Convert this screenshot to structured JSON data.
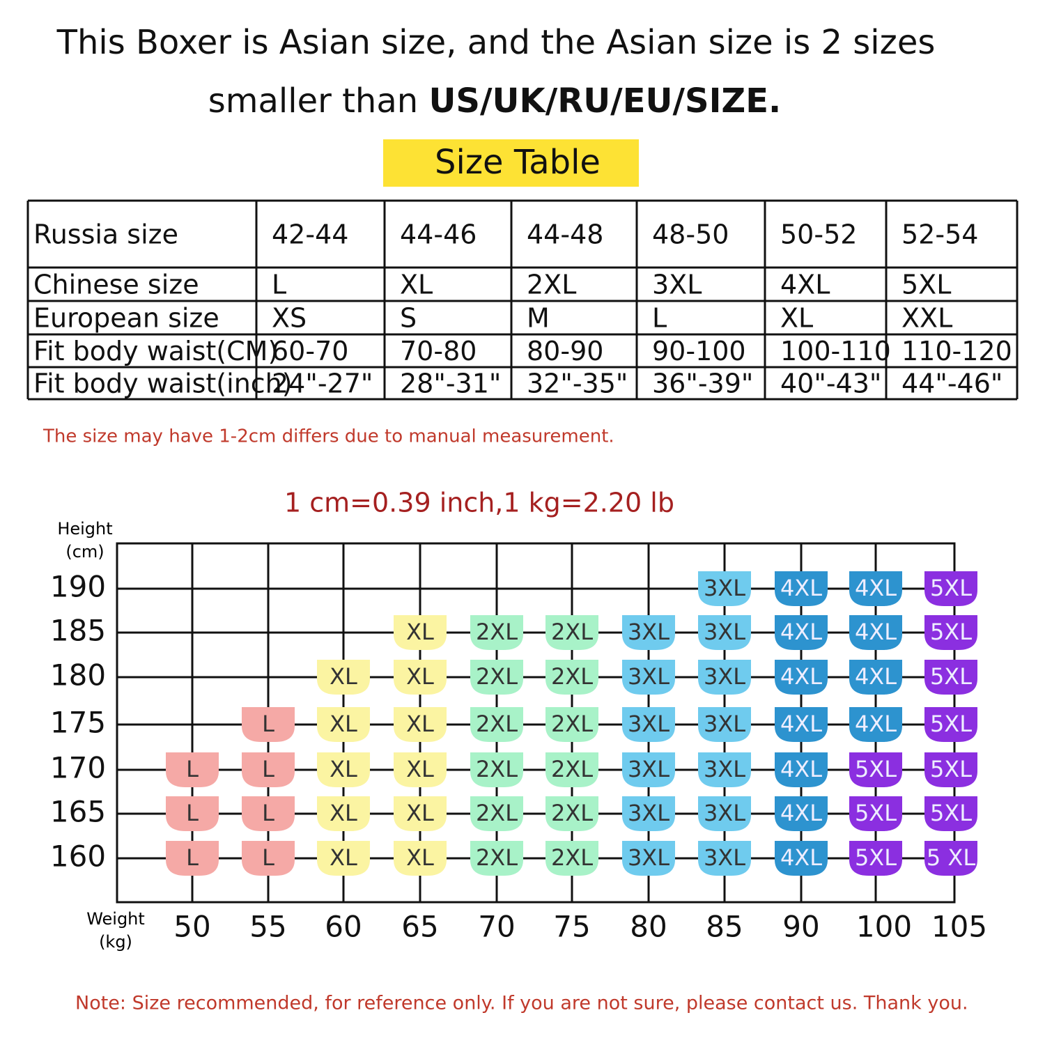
{
  "header": {
    "line1": "This Boxer is Asian size, and the Asian size is 2 sizes",
    "line2_plain": "smaller than ",
    "line2_bold": "US/UK/RU/EU/SIZE.",
    "badge": "Size Table"
  },
  "table": {
    "rows": [
      [
        "Russia size",
        "42-44",
        "44-46",
        "44-48",
        "48-50",
        "50-52",
        "52-54"
      ],
      [
        "Chinese size",
        "L",
        "XL",
        "2XL",
        "3XL",
        "4XL",
        "5XL"
      ],
      [
        "European size",
        "XS",
        "S",
        "M",
        "L",
        "XL",
        "XXL"
      ],
      [
        "Fit body waist(CM)",
        "60-70",
        "70-80",
        "80-90",
        "90-100",
        "100-110",
        "110-120"
      ],
      [
        "Fit body waist(inch)",
        "24\"-27\"",
        "28\"-31\"",
        "32\"-35\"",
        "36\"-39\"",
        "40\"-43\"",
        "44\"-46\""
      ]
    ]
  },
  "measure_note": "The size may have 1-2cm differs due to manual measurement.",
  "conversion": "1 cm=0.39 inch,1 kg=2.20 lb",
  "size_chart": {
    "y_label": [
      "Height",
      "(cm)"
    ],
    "x_label": [
      "Weight",
      "(kg)"
    ],
    "heights": [
      "190",
      "185",
      "180",
      "175",
      "170",
      "165",
      "160"
    ],
    "weights": [
      "50",
      "55",
      "60",
      "65",
      "70",
      "75",
      "80",
      "85",
      "90",
      "100",
      "105"
    ],
    "size_colors": {
      "L": "#f5a9a6",
      "XL": "#fbf4a2",
      "2XL": "#a8f2c8",
      "3XL": "#6fcbee",
      "4XL": "#2d93cf",
      "5XL": "#8b2fe0"
    },
    "cells": [
      [
        null,
        null,
        null,
        null,
        null,
        null,
        null,
        "3XL",
        "4XL",
        "4XL",
        "5XL"
      ],
      [
        null,
        null,
        null,
        "XL",
        "2XL",
        "2XL",
        "3XL",
        "3XL",
        "4XL",
        "4XL",
        "5XL"
      ],
      [
        null,
        null,
        "XL",
        "XL",
        "2XL",
        "2XL",
        "3XL",
        "3XL",
        "4XL",
        "4XL",
        "5XL"
      ],
      [
        null,
        "L",
        "XL",
        "XL",
        "2XL",
        "2XL",
        "3XL",
        "3XL",
        "4XL",
        "4XL",
        "5XL"
      ],
      [
        "L",
        "L",
        "XL",
        "XL",
        "2XL",
        "2XL",
        "3XL",
        "3XL",
        "4XL",
        "5XL",
        "5XL"
      ],
      [
        "L",
        "L",
        "XL",
        "XL",
        "2XL",
        "2XL",
        "3XL",
        "3XL",
        "4XL",
        "5XL",
        "5XL"
      ],
      [
        "L",
        "L",
        "XL",
        "XL",
        "2XL",
        "2XL",
        "3XL",
        "3XL",
        "4XL",
        "5XL",
        "5 XL"
      ]
    ]
  },
  "footer_note": "Note: Size recommended, for reference only. If you are not sure, please contact us. Thank you."
}
